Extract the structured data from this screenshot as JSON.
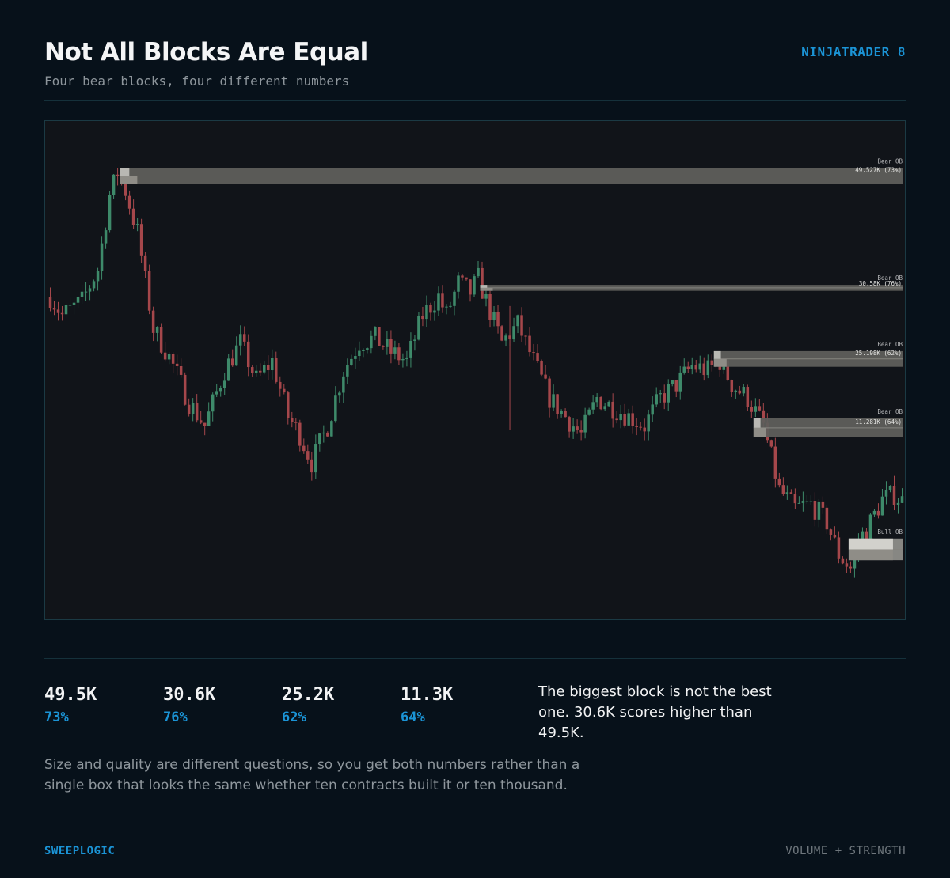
{
  "header": {
    "title": "Not All Blocks Are Equal",
    "subtitle": "Four bear blocks, four different numbers",
    "platform": "NINJATRADER 8"
  },
  "chart_data": {
    "type": "candlestick",
    "title": "",
    "xlabel": "",
    "ylabel": "",
    "grid": false,
    "order_blocks": [
      {
        "label": "Bear OB",
        "value_text": "49.527K (73%)",
        "volume": 49.527,
        "strength_pct": 73,
        "start_bar": 18,
        "top": 96.0,
        "bottom": 92.5
      },
      {
        "label": "Bear OB",
        "value_text": "30.58K (76%)",
        "volume": 30.58,
        "strength_pct": 76,
        "start_bar": 109,
        "top": 70.6,
        "bottom": 69.3
      },
      {
        "label": "Bear OB",
        "value_text": "25.198K (62%)",
        "volume": 25.198,
        "strength_pct": 62,
        "start_bar": 168,
        "top": 56.2,
        "bottom": 52.8
      },
      {
        "label": "Bear OB",
        "value_text": "11.281K (64%)",
        "volume": 11.281,
        "strength_pct": 64,
        "start_bar": 178,
        "top": 41.6,
        "bottom": 37.5
      },
      {
        "label": "Bull OB",
        "value_text": "",
        "volume": null,
        "strength_pct": null,
        "start_bar": 202,
        "top": 15.5,
        "bottom": 10.8
      }
    ],
    "price_path": [
      [
        0,
        68
      ],
      [
        3,
        64
      ],
      [
        8,
        67
      ],
      [
        12,
        74
      ],
      [
        15,
        90
      ],
      [
        17,
        95
      ],
      [
        19,
        91
      ],
      [
        22,
        82
      ],
      [
        26,
        61
      ],
      [
        30,
        55
      ],
      [
        35,
        45
      ],
      [
        39,
        40
      ],
      [
        44,
        52
      ],
      [
        48,
        58
      ],
      [
        52,
        50
      ],
      [
        56,
        54
      ],
      [
        60,
        42
      ],
      [
        63,
        38
      ],
      [
        66,
        32
      ],
      [
        70,
        40
      ],
      [
        74,
        52
      ],
      [
        78,
        58
      ],
      [
        82,
        59
      ],
      [
        86,
        56
      ],
      [
        90,
        54
      ],
      [
        94,
        64
      ],
      [
        98,
        68
      ],
      [
        100,
        64
      ],
      [
        103,
        71
      ],
      [
        106,
        69
      ],
      [
        108,
        72
      ],
      [
        110,
        67
      ],
      [
        114,
        58
      ],
      [
        118,
        62
      ],
      [
        122,
        54
      ],
      [
        126,
        46
      ],
      [
        130,
        42
      ],
      [
        134,
        38
      ],
      [
        138,
        46
      ],
      [
        142,
        44
      ],
      [
        146,
        42
      ],
      [
        150,
        40
      ],
      [
        154,
        46
      ],
      [
        158,
        49
      ],
      [
        162,
        53
      ],
      [
        166,
        52
      ],
      [
        169,
        54
      ],
      [
        172,
        49
      ],
      [
        176,
        46
      ],
      [
        180,
        40
      ],
      [
        184,
        26
      ],
      [
        188,
        22
      ],
      [
        192,
        23
      ],
      [
        196,
        19
      ],
      [
        199,
        12
      ],
      [
        202,
        9
      ],
      [
        204,
        15
      ],
      [
        207,
        19
      ],
      [
        210,
        24
      ],
      [
        213,
        25
      ],
      [
        216,
        23
      ]
    ],
    "bars": 216,
    "ylim": [
      0,
      100
    ]
  },
  "stats": [
    {
      "value": "49.5K",
      "pct": "73%"
    },
    {
      "value": "30.6K",
      "pct": "76%"
    },
    {
      "value": "25.2K",
      "pct": "62%"
    },
    {
      "value": "11.3K",
      "pct": "64%"
    }
  ],
  "callout": "The biggest block is not the best one. 30.6K scores higher than 49.5K.",
  "body": "Size and quality are different questions, so you get both numbers rather than a single box that looks the same whether ten contracts built it or ten thousand.",
  "footer": {
    "brand": "SWEEPLOGIC",
    "tagline": "VOLUME + STRENGTH"
  },
  "colors": {
    "background": "#07111a",
    "chart_bg": "#111419",
    "accent": "#1b94d6",
    "up_candle": "#3e8a6a",
    "down_candle": "#a5474b",
    "block_fill": "#5f5e5b",
    "block_highlight": "#b9b8b3"
  }
}
